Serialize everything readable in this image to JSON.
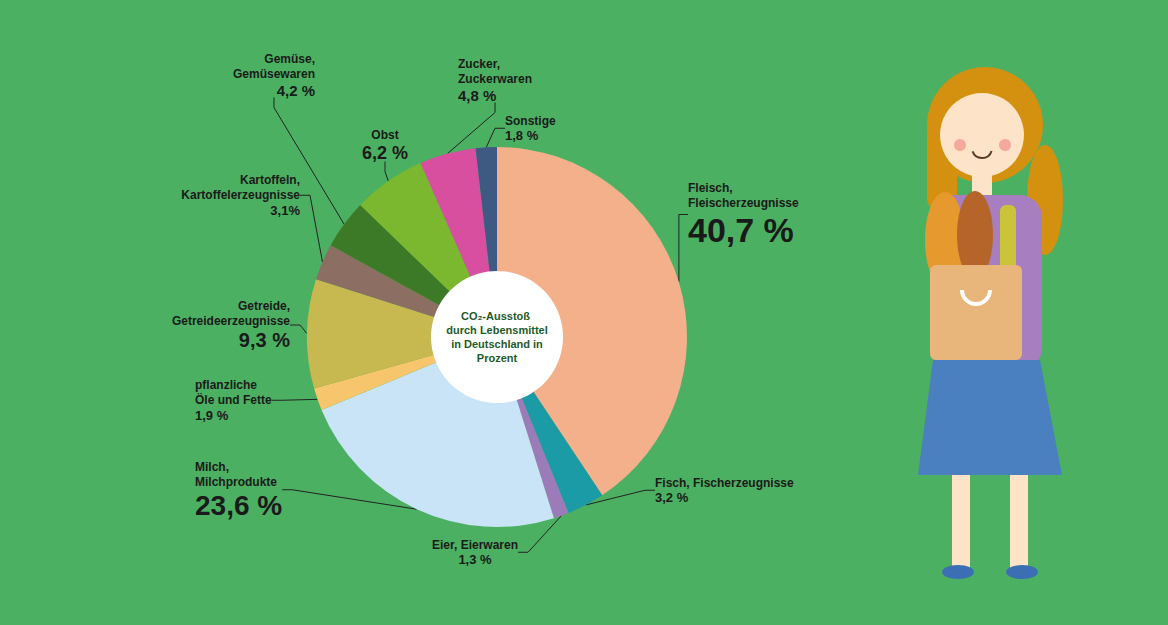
{
  "chart_data": {
    "type": "pie",
    "title": "CO₂-Ausstoß durch Lebensmittel in Deutschland in Prozent",
    "categories": [
      "Fleisch, Fleischerzeugnisse",
      "Fisch, Fischerzeugnisse",
      "Eier, Eierwaren",
      "Milch, Milchprodukte",
      "pflanzliche Öle und Fette",
      "Getreide, Getreideerzeugnisse",
      "Kartoffeln, Kartoffelerzeugnisse",
      "Gemüse, Gemüsewaren",
      "Obst",
      "Zucker, Zuckerwaren",
      "Sonstige"
    ],
    "values": [
      40.7,
      3.2,
      1.3,
      23.6,
      1.9,
      9.3,
      3.1,
      4.2,
      6.2,
      4.8,
      1.8
    ],
    "value_labels": [
      "40,7 %",
      "3,2 %",
      "1,3 %",
      "23,6 %",
      "1,9 %",
      "9,3 %",
      "3,1%",
      "4,2 %",
      "6,2 %",
      "4,8 %",
      "1,8 %"
    ],
    "colors": [
      "#f4b08a",
      "#1a9ba5",
      "#9b7bb8",
      "#c9e4f7",
      "#f7c56b",
      "#c8b850",
      "#8c6e63",
      "#3d7a28",
      "#7cb82f",
      "#d94fa0",
      "#3f5a82"
    ],
    "data_labels": true
  }
}
